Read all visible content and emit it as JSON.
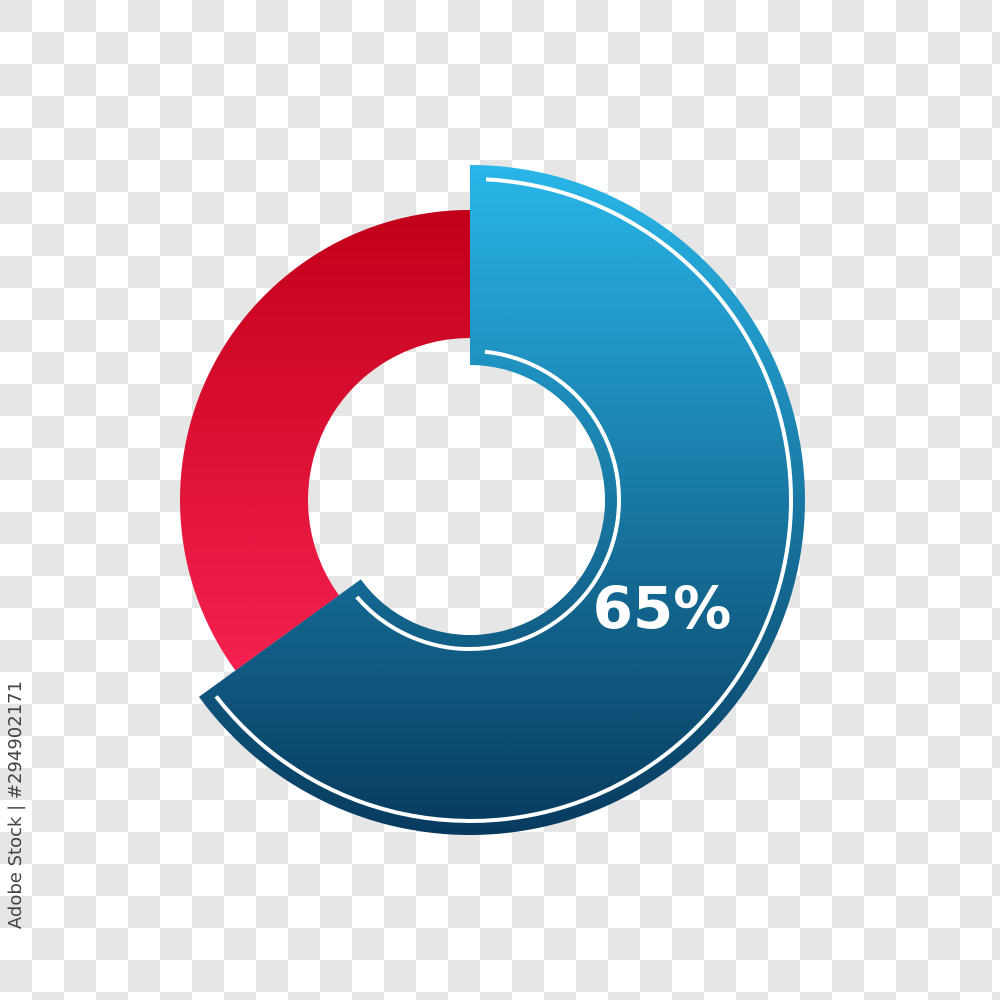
{
  "chart_data": {
    "type": "donut",
    "values": [
      65,
      35
    ],
    "value_labels": [
      "65%",
      null
    ],
    "colors": [
      [
        "#29b6e9",
        "#073a5e"
      ],
      [
        "#c20019",
        "#f5204f"
      ]
    ],
    "credit": "Adobe Stock | #294902171"
  }
}
